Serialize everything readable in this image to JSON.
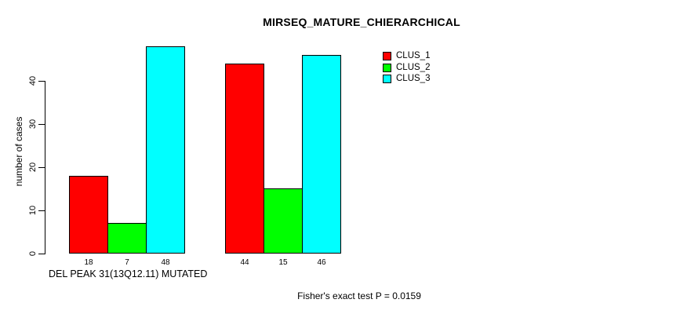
{
  "chart_data": {
    "type": "bar",
    "title": "MIRSEQ_MATURE_CHIERARCHICAL",
    "xlabel": "DEL PEAK 31(13Q12.11) MUTATED",
    "ylabel": "number of cases",
    "ylim": [
      0,
      40
    ],
    "yticks": [
      0,
      10,
      20,
      30,
      40
    ],
    "grid": false,
    "legend_position": "top-right",
    "categories": [
      "",
      ""
    ],
    "series": [
      {
        "name": "CLUS_1",
        "color": "#FF0000",
        "values": [
          18,
          44
        ]
      },
      {
        "name": "CLUS_2",
        "color": "#00FF00",
        "values": [
          7,
          15
        ]
      },
      {
        "name": "CLUS_3",
        "color": "#00FFFF",
        "values": [
          48,
          46
        ]
      }
    ],
    "bar_value_labels": [
      [
        18,
        7,
        48
      ],
      [
        44,
        15,
        46
      ]
    ],
    "footnote": "Fisher's exact test P = 0.0159"
  }
}
